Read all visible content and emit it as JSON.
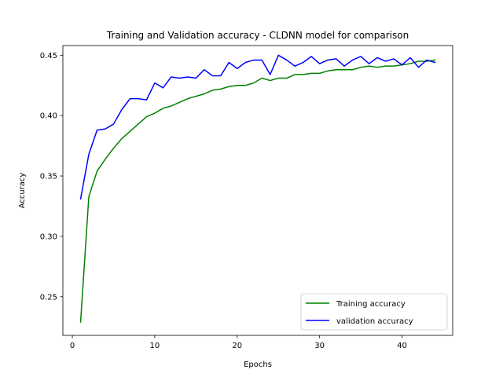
{
  "chart_data": {
    "type": "line",
    "title": "Training and Validation accuracy - CLDNN model for comparison",
    "xlabel": "Epochs",
    "ylabel": "Accuracy",
    "xlim": [
      -1.15,
      46.15
    ],
    "ylim": [
      0.218,
      0.458
    ],
    "xticks": [
      0,
      10,
      20,
      30,
      40
    ],
    "yticks": [
      0.25,
      0.3,
      0.35,
      0.4,
      0.45
    ],
    "ytick_labels": [
      "0.25",
      "0.30",
      "0.35",
      "0.40",
      "0.45"
    ],
    "grid": false,
    "legend_position": "lower right",
    "x": [
      1,
      2,
      3,
      4,
      5,
      6,
      7,
      8,
      9,
      10,
      11,
      12,
      13,
      14,
      15,
      16,
      17,
      18,
      19,
      20,
      21,
      22,
      23,
      24,
      25,
      26,
      27,
      28,
      29,
      30,
      31,
      32,
      33,
      34,
      35,
      36,
      37,
      38,
      39,
      40,
      41,
      42,
      43,
      44
    ],
    "series": [
      {
        "name": "Training accuracy",
        "color": "#008000",
        "values": [
          0.229,
          0.333,
          0.354,
          0.364,
          0.373,
          0.381,
          0.387,
          0.393,
          0.399,
          0.402,
          0.406,
          0.408,
          0.411,
          0.414,
          0.416,
          0.418,
          0.421,
          0.422,
          0.424,
          0.425,
          0.425,
          0.427,
          0.431,
          0.429,
          0.431,
          0.431,
          0.434,
          0.434,
          0.435,
          0.435,
          0.437,
          0.438,
          0.438,
          0.438,
          0.44,
          0.441,
          0.44,
          0.441,
          0.441,
          0.442,
          0.443,
          0.445,
          0.445,
          0.446
        ]
      },
      {
        "name": "validation accuracy",
        "color": "#0000ff",
        "values": [
          0.331,
          0.368,
          0.388,
          0.389,
          0.393,
          0.405,
          0.414,
          0.414,
          0.413,
          0.427,
          0.423,
          0.432,
          0.431,
          0.432,
          0.431,
          0.438,
          0.433,
          0.433,
          0.444,
          0.439,
          0.444,
          0.446,
          0.446,
          0.434,
          0.45,
          0.446,
          0.441,
          0.444,
          0.449,
          0.443,
          0.446,
          0.447,
          0.441,
          0.446,
          0.449,
          0.443,
          0.448,
          0.445,
          0.447,
          0.442,
          0.448,
          0.44,
          0.446,
          0.444
        ]
      }
    ]
  }
}
